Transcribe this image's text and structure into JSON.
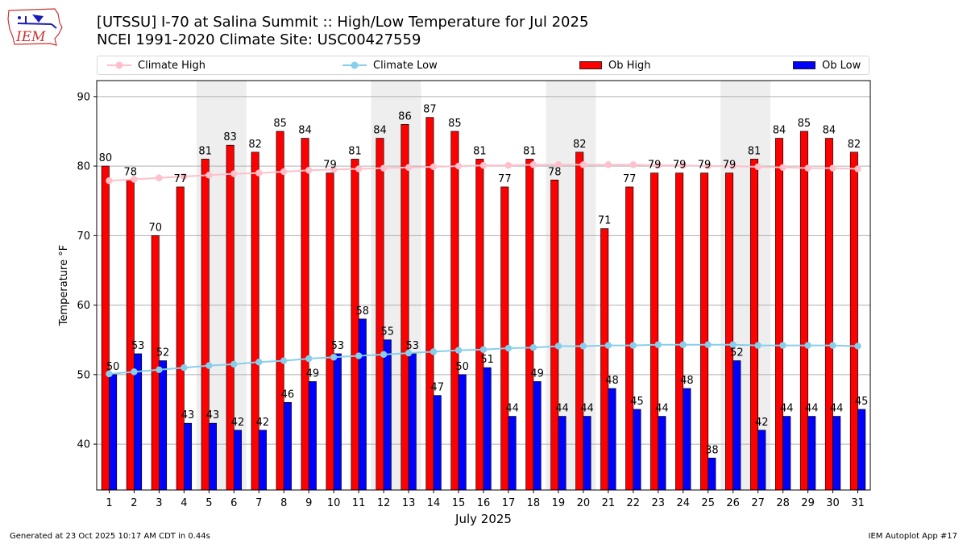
{
  "header": {
    "title_line1": "[UTSSU] I-70 at Salina Summit  :: High/Low Temperature for Jul 2025",
    "title_line2": "NCEI 1991-2020 Climate Site: USC00427559",
    "logo_text": "IEM"
  },
  "legend": {
    "climate_high": "Climate High",
    "climate_low": "Climate Low",
    "ob_high": "Ob High",
    "ob_low": "Ob Low"
  },
  "colors": {
    "ob_high": "#ff0000",
    "ob_low": "#0000ff",
    "climate_high": "#ffc0cb",
    "climate_low": "#87ceeb",
    "weekend_shade": "#eeeeee",
    "grid": "#b0b0b0"
  },
  "footer": {
    "generated": "Generated at 23 Oct 2025 10:17 AM CDT in 0.44s",
    "app": "IEM Autoplot App #17"
  },
  "chart_data": {
    "type": "bar",
    "title": "[UTSSU] I-70 at Salina Summit  :: High/Low Temperature for Jul 2025",
    "subtitle": "NCEI 1991-2020 Climate Site: USC00427559",
    "xlabel": "July 2025",
    "ylabel": "Temperature °F",
    "ylim": [
      33.4,
      92.3
    ],
    "yticks": [
      40,
      50,
      60,
      70,
      80,
      90
    ],
    "grid": "horizontal",
    "legend_position": "top",
    "categories": [
      1,
      2,
      3,
      4,
      5,
      6,
      7,
      8,
      9,
      10,
      11,
      12,
      13,
      14,
      15,
      16,
      17,
      18,
      19,
      20,
      21,
      22,
      23,
      24,
      25,
      26,
      27,
      28,
      29,
      30,
      31
    ],
    "shaded_days": [
      [
        5,
        6
      ],
      [
        12,
        13
      ],
      [
        19,
        20
      ],
      [
        26,
        27
      ]
    ],
    "series": [
      {
        "name": "Ob High",
        "kind": "bar",
        "values": [
          80,
          78,
          70,
          77,
          81,
          83,
          82,
          85,
          84,
          79,
          81,
          84,
          86,
          87,
          85,
          81,
          77,
          81,
          78,
          82,
          71,
          77,
          79,
          79,
          79,
          79,
          81,
          84,
          85,
          84,
          82
        ],
        "labels": [
          "80",
          "78",
          "70",
          "77",
          "81",
          "83",
          "82",
          "85",
          "84",
          "79",
          "81",
          "84",
          "86",
          "87",
          "85",
          "81",
          "77",
          "81",
          "78",
          "82",
          "71",
          "77",
          "79",
          "79",
          "79",
          "79",
          "81",
          "84",
          "85",
          "84",
          "82"
        ]
      },
      {
        "name": "Ob Low",
        "kind": "bar",
        "values": [
          50,
          53,
          52,
          43,
          43,
          42,
          42,
          46,
          49,
          53,
          58,
          55,
          53,
          47,
          50,
          51,
          44,
          49,
          44,
          44,
          48,
          45,
          44,
          48,
          38,
          52,
          42,
          44,
          44,
          44,
          45
        ],
        "labels": [
          "50",
          "53",
          "52",
          "43",
          "43",
          "42",
          "42",
          "46",
          "49",
          "53",
          "58",
          "55",
          "53",
          "47",
          "50",
          "51",
          "44",
          "49",
          "44",
          "44",
          "48",
          "45",
          "44",
          "48",
          "38",
          "52",
          "42",
          "44",
          "44",
          "44",
          "45"
        ]
      },
      {
        "name": "Climate High",
        "kind": "line",
        "values": [
          77.9,
          78.1,
          78.3,
          78.5,
          78.7,
          78.9,
          79.0,
          79.2,
          79.4,
          79.5,
          79.6,
          79.7,
          79.8,
          79.9,
          80.0,
          80.1,
          80.1,
          80.2,
          80.2,
          80.2,
          80.2,
          80.2,
          80.1,
          80.1,
          80.0,
          80.0,
          79.9,
          79.8,
          79.7,
          79.7,
          79.6
        ]
      },
      {
        "name": "Climate Low",
        "kind": "line",
        "values": [
          50.1,
          50.4,
          50.7,
          51.0,
          51.3,
          51.5,
          51.8,
          52.0,
          52.3,
          52.5,
          52.7,
          52.9,
          53.1,
          53.3,
          53.5,
          53.6,
          53.8,
          53.9,
          54.1,
          54.1,
          54.2,
          54.2,
          54.3,
          54.3,
          54.3,
          54.3,
          54.2,
          54.2,
          54.2,
          54.2,
          54.1
        ]
      }
    ]
  }
}
